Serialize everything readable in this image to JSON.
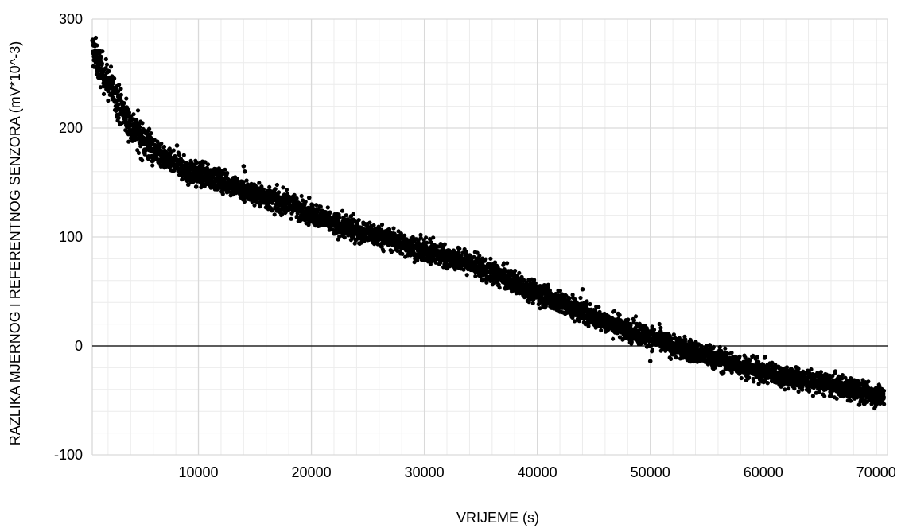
{
  "chart_data": {
    "type": "scatter",
    "xlabel": "VRIJEME (s)",
    "ylabel": "RAZLIKA MJERNOG I REFERENTNOG SENZORA (mV*10^-3)",
    "xlim": [
      600,
      71000
    ],
    "ylim": [
      -100,
      300
    ],
    "x_ticks": [
      10000,
      20000,
      30000,
      40000,
      50000,
      60000,
      70000
    ],
    "y_ticks": [
      -100,
      0,
      100,
      200,
      300
    ],
    "x_minor_step": 2000,
    "y_minor_step": 20,
    "grid": true,
    "marker_color": "#000000",
    "grid_color": "#d9d9d9",
    "zero_line": true,
    "series_points": [
      [
        600,
        272
      ],
      [
        800,
        268
      ],
      [
        1000,
        262
      ],
      [
        1500,
        252
      ],
      [
        2000,
        242
      ],
      [
        2500,
        233
      ],
      [
        3000,
        222
      ],
      [
        3500,
        212
      ],
      [
        4000,
        202
      ],
      [
        5000,
        191
      ],
      [
        6000,
        181
      ],
      [
        7000,
        172
      ],
      [
        8000,
        166
      ],
      [
        9000,
        161
      ],
      [
        10000,
        158
      ],
      [
        12000,
        152
      ],
      [
        14000,
        143
      ],
      [
        16000,
        136
      ],
      [
        18000,
        130
      ],
      [
        20000,
        122
      ],
      [
        22000,
        112
      ],
      [
        24000,
        106
      ],
      [
        26000,
        101
      ],
      [
        28000,
        94
      ],
      [
        30000,
        87
      ],
      [
        32000,
        82
      ],
      [
        34000,
        76
      ],
      [
        36000,
        67
      ],
      [
        38000,
        58
      ],
      [
        40000,
        49
      ],
      [
        42000,
        40
      ],
      [
        44000,
        31
      ],
      [
        46000,
        23
      ],
      [
        48000,
        15
      ],
      [
        50000,
        8
      ],
      [
        52000,
        0
      ],
      [
        54000,
        -6
      ],
      [
        56000,
        -12
      ],
      [
        58000,
        -18
      ],
      [
        60000,
        -24
      ],
      [
        62000,
        -28
      ],
      [
        64000,
        -32
      ],
      [
        66000,
        -36
      ],
      [
        68000,
        -40
      ],
      [
        70000,
        -45
      ],
      [
        71000,
        -47
      ]
    ],
    "outliers": [
      [
        8100,
        184
      ],
      [
        14000,
        165
      ],
      [
        14100,
        160
      ],
      [
        9100,
        148
      ],
      [
        50000,
        -14
      ],
      [
        23500,
        119
      ],
      [
        30500,
        98
      ],
      [
        40500,
        42
      ],
      [
        65500,
        -26
      ],
      [
        68500,
        -54
      ],
      [
        9800,
        146
      ],
      [
        19800,
        136
      ],
      [
        34500,
        86
      ],
      [
        44000,
        52
      ],
      [
        57500,
        -10
      ]
    ],
    "num_points": 5000,
    "noise": 5
  }
}
